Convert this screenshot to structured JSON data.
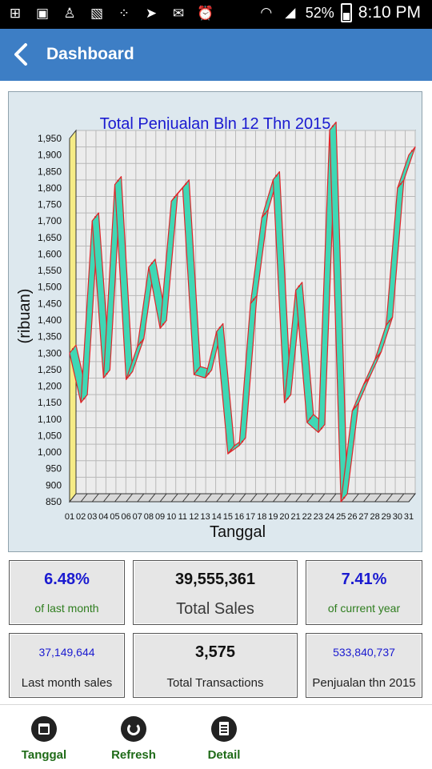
{
  "status_bar": {
    "battery": "52%",
    "time": "8:10 PM",
    "icons": [
      "plus-icon",
      "gift-icon",
      "android-icon",
      "image-icon",
      "blackberry-icon",
      "send-icon",
      "mail-icon",
      "alarm-icon",
      "wifi-icon",
      "signal-icon",
      "battery-icon"
    ]
  },
  "header": {
    "title": "Dashboard",
    "back_icon": "chevron-left-icon"
  },
  "chart_data": {
    "type": "line",
    "title": "Total Penjualan Bln 12 Thn 2015",
    "xlabel": "Tanggal",
    "ylabel": "(ribuan)",
    "categories": [
      "01",
      "02",
      "03",
      "04",
      "05",
      "06",
      "07",
      "08",
      "09",
      "10",
      "11",
      "12",
      "13",
      "14",
      "15",
      "16",
      "17",
      "18",
      "19",
      "20",
      "21",
      "22",
      "23",
      "24",
      "25",
      "26",
      "27",
      "28",
      "29",
      "30",
      "31"
    ],
    "values": [
      1300,
      1150,
      1700,
      1225,
      1810,
      1220,
      1320,
      1560,
      1375,
      1760,
      1800,
      1235,
      1225,
      1365,
      995,
      1020,
      1450,
      1710,
      1825,
      1150,
      1490,
      1090,
      1060,
      1975,
      850,
      1125,
      1205,
      1280,
      1385,
      1800,
      1900
    ],
    "ylim": [
      850,
      1950
    ],
    "yticks": [
      "850",
      "900",
      "950",
      "1,000",
      "1,050",
      "1,100",
      "1,150",
      "1,200",
      "1,250",
      "1,300",
      "1,350",
      "1,400",
      "1,450",
      "1,500",
      "1,550",
      "1,600",
      "1,650",
      "1,700",
      "1,750",
      "1,800",
      "1,850",
      "1,900",
      "1,950"
    ],
    "grid": true,
    "colors": {
      "ribbon": "#3fd8b5",
      "outline": "#e0262a",
      "title": "#1a1ad0",
      "panel": "#dde8ee",
      "plot": "#ececec",
      "grid": "#b8b8b8",
      "wall": "#f6ec86"
    }
  },
  "stats": {
    "last_month_pct": "6.48%",
    "last_month_pct_label": "of last month",
    "total_sales": "39,555,361",
    "total_sales_label": "Total Sales",
    "current_year_pct": "7.41%",
    "current_year_pct_label": "of current year",
    "last_month_sales": "37,149,644",
    "last_month_sales_label": "Last month sales",
    "total_transactions": "3,575",
    "total_transactions_label": "Total Transactions",
    "year_sales": "533,840,737",
    "year_sales_label": "Penjualan thn 2015"
  },
  "bottom_nav": {
    "tanggal": "Tanggal",
    "refresh": "Refresh",
    "detail": "Detail"
  }
}
